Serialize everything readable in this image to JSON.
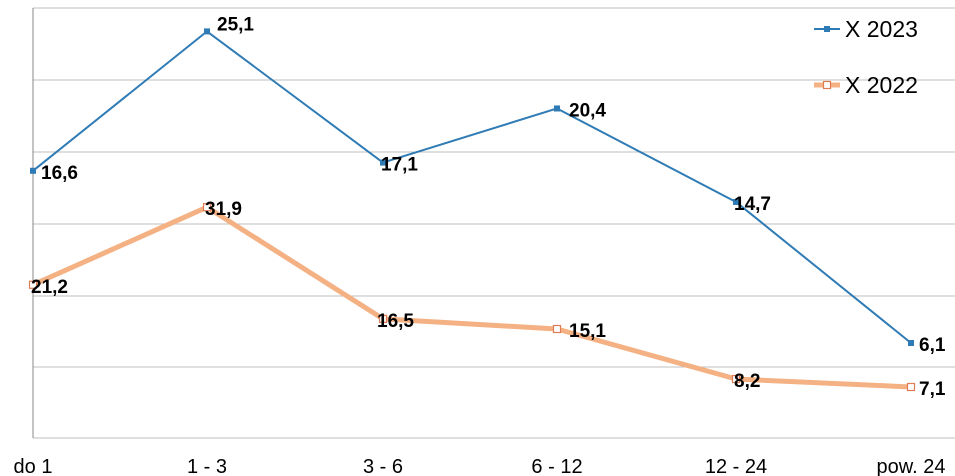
{
  "chart_data": {
    "type": "line",
    "categories": [
      "do 1",
      "1 - 3",
      "3 - 6",
      "6 - 12",
      "12 - 24",
      "pow. 24"
    ],
    "series": [
      {
        "name": "X 2023",
        "values": [
          16.6,
          25.1,
          17.1,
          20.4,
          14.7,
          6.1
        ],
        "labels": [
          "16,6",
          "25,1",
          "17,1",
          "20,4",
          "14,7",
          "6,1"
        ],
        "color": "#2f7bb5",
        "marker": "filled-square"
      },
      {
        "name": "X 2022",
        "values": [
          21.2,
          31.9,
          16.5,
          15.1,
          8.2,
          7.1
        ],
        "labels": [
          "21,2",
          "31,9",
          "16,5",
          "15,1",
          "8,2",
          "7,1"
        ],
        "color": "#f4b183",
        "marker": "open-square"
      }
    ],
    "grid": true,
    "legend_position": "top-right",
    "xlabel": "",
    "ylabel": ""
  }
}
